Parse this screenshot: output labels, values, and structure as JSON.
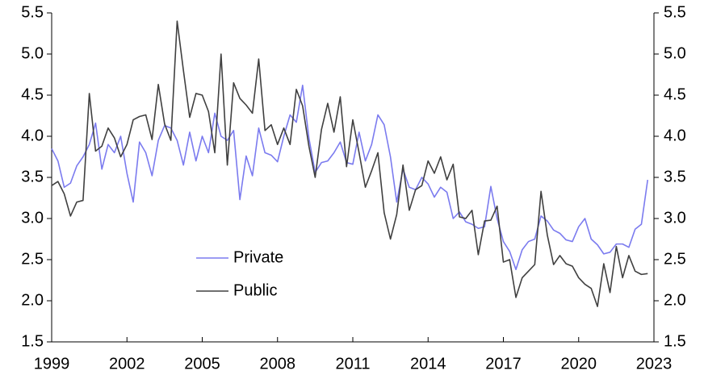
{
  "chart_data": {
    "type": "line",
    "x": [
      1999,
      1999.25,
      1999.5,
      1999.75,
      2000,
      2000.25,
      2000.5,
      2000.75,
      2001,
      2001.25,
      2001.5,
      2001.75,
      2002,
      2002.25,
      2002.5,
      2002.75,
      2003,
      2003.25,
      2003.5,
      2003.75,
      2004,
      2004.25,
      2004.5,
      2004.75,
      2005,
      2005.25,
      2005.5,
      2005.75,
      2006,
      2006.25,
      2006.5,
      2006.75,
      2007,
      2007.25,
      2007.5,
      2007.75,
      2008,
      2008.25,
      2008.5,
      2008.75,
      2009,
      2009.25,
      2009.5,
      2009.75,
      2010,
      2010.25,
      2010.5,
      2010.75,
      2011,
      2011.25,
      2011.5,
      2011.75,
      2012,
      2012.25,
      2012.5,
      2012.75,
      2013,
      2013.25,
      2013.5,
      2013.75,
      2014,
      2014.25,
      2014.5,
      2014.75,
      2015,
      2015.25,
      2015.5,
      2015.75,
      2016,
      2016.25,
      2016.5,
      2016.75,
      2017,
      2017.25,
      2017.5,
      2017.75,
      2018,
      2018.25,
      2018.5,
      2018.75,
      2019,
      2019.25,
      2019.5,
      2019.75,
      2020,
      2020.25,
      2020.5,
      2020.75,
      2021,
      2021.25,
      2021.5,
      2021.75,
      2022,
      2022.25,
      2022.5,
      2022.75
    ],
    "series": [
      {
        "name": "Private",
        "color": "#7b7bef",
        "values": [
          3.85,
          3.7,
          3.38,
          3.43,
          3.64,
          3.75,
          3.9,
          4.16,
          3.6,
          3.9,
          3.8,
          4.0,
          3.55,
          3.2,
          3.93,
          3.8,
          3.52,
          3.95,
          4.13,
          4.1,
          3.95,
          3.65,
          4.05,
          3.7,
          4.0,
          3.8,
          4.28,
          4.0,
          3.95,
          4.07,
          3.23,
          3.76,
          3.52,
          4.1,
          3.8,
          3.77,
          3.69,
          4.0,
          4.26,
          4.17,
          4.62,
          3.98,
          3.56,
          3.68,
          3.7,
          3.8,
          3.93,
          3.68,
          3.66,
          4.05,
          3.7,
          3.9,
          4.26,
          4.14,
          3.75,
          3.2,
          3.6,
          3.38,
          3.35,
          3.5,
          3.42,
          3.26,
          3.38,
          3.32,
          3.0,
          3.08,
          2.96,
          2.93,
          2.88,
          2.9,
          3.39,
          3.0,
          2.72,
          2.6,
          2.38,
          2.62,
          2.72,
          2.75,
          3.03,
          2.97,
          2.86,
          2.82,
          2.74,
          2.72,
          2.9,
          3.0,
          2.75,
          2.68,
          2.57,
          2.59,
          2.69,
          2.69,
          2.65,
          2.87,
          2.93,
          3.47
        ]
      },
      {
        "name": "Public",
        "color": "#404040",
        "values": [
          3.4,
          3.45,
          3.3,
          3.03,
          3.2,
          3.22,
          4.52,
          3.82,
          3.88,
          4.1,
          3.98,
          3.75,
          3.9,
          4.2,
          4.24,
          4.26,
          3.96,
          4.63,
          4.15,
          3.95,
          5.4,
          4.8,
          4.23,
          4.52,
          4.5,
          4.3,
          3.8,
          5.0,
          3.65,
          4.65,
          4.46,
          4.38,
          4.28,
          4.94,
          4.07,
          4.14,
          3.9,
          4.1,
          3.9,
          4.57,
          4.37,
          3.88,
          3.5,
          4.08,
          4.4,
          4.05,
          4.48,
          3.63,
          4.2,
          3.8,
          3.38,
          3.58,
          3.8,
          3.07,
          2.75,
          3.05,
          3.65,
          3.1,
          3.35,
          3.4,
          3.7,
          3.55,
          3.75,
          3.47,
          3.66,
          3.02,
          3.0,
          3.1,
          2.56,
          2.97,
          2.98,
          3.15,
          2.47,
          2.5,
          2.04,
          2.28,
          2.36,
          2.44,
          3.33,
          2.8,
          2.44,
          2.55,
          2.45,
          2.42,
          2.28,
          2.2,
          2.15,
          1.93,
          2.45,
          2.1,
          2.66,
          2.28,
          2.55,
          2.36,
          2.32,
          2.33
        ]
      }
    ],
    "xlim": [
      1999,
      2023
    ],
    "xticks": [
      1999,
      2002,
      2005,
      2008,
      2011,
      2014,
      2017,
      2020,
      2023
    ],
    "ylim": [
      1.5,
      5.5
    ],
    "yticks": [
      1.5,
      {
        "value": 2,
        "label": "2.0"
      },
      2.5,
      {
        "value": 3,
        "label": "3.0"
      },
      3.5,
      {
        "value": 4,
        "label": "4.0"
      },
      4.5,
      {
        "value": 5,
        "label": "5.0"
      },
      5.5
    ],
    "y2lim": [
      1.5,
      5.5
    ],
    "y2ticks": [
      1.5,
      {
        "value": 2,
        "label": "2.0"
      },
      2.5,
      {
        "value": 3,
        "label": "3.0"
      },
      3.5,
      {
        "value": 4,
        "label": "4.0"
      },
      4.5,
      {
        "value": 5,
        "label": "5.0"
      },
      5.5
    ],
    "legend": "lower left"
  }
}
